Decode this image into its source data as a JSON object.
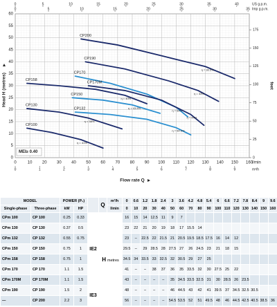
{
  "chart_data": {
    "type": "line",
    "y_label": "Head H (metres)",
    "x_label": "Flow rate Q",
    "x_unit": "l/min",
    "xlim": [
      0,
      160
    ],
    "xticks": [
      0,
      10,
      20,
      30,
      40,
      50,
      60,
      70,
      80,
      90,
      100,
      110,
      120,
      130,
      140,
      150,
      160
    ],
    "ylim": [
      0,
      60
    ],
    "yticks": [
      0,
      5,
      10,
      15,
      20,
      25,
      30,
      35,
      40,
      45,
      50,
      55,
      60
    ],
    "x2_unit": "m³/h",
    "x2lim": [
      0,
      9.6
    ],
    "x2ticks": [
      0,
      1,
      2,
      3,
      4,
      5,
      6,
      7,
      8,
      9
    ],
    "x3_unit": "US g.p.m.",
    "x3lim": [
      0,
      42.27
    ],
    "x3ticks": [
      0,
      5,
      10,
      15,
      20,
      25,
      30,
      35,
      40
    ],
    "x4_unit": "Imp g.p.m.",
    "x4lim": [
      0,
      35.2
    ],
    "x4ticks": [
      0,
      5,
      10,
      15,
      20,
      25,
      30,
      35
    ],
    "y2_unit": "feet",
    "y2lim": [
      0,
      196.85
    ],
    "y2ticks": [
      0,
      25,
      50,
      75,
      100,
      125,
      150,
      175
    ],
    "grid": true,
    "badge": "MEI≥ 0.40",
    "series": [
      {
        "name": "CP200",
        "color": "#1b2a6b",
        "x": [
          45,
          70,
          100,
          130,
          150
        ],
        "values": [
          49.5,
          47,
          42.5,
          38,
          33
        ],
        "efficiency": "η = 30.5%"
      },
      {
        "name": "CP190",
        "color": "#1b2a6b",
        "x": [
          48,
          75,
          105,
          125,
          139
        ],
        "values": [
          40,
          37,
          32,
          28,
          23.5
        ],
        "efficiency": "η = 33%"
      },
      {
        "name": "CP170",
        "color": "#2a8fd0",
        "x": [
          41,
          65,
          90,
          110,
          118
        ],
        "values": [
          34,
          31,
          26.5,
          21,
          17
        ],
        "efficiency": "η = 54%"
      },
      {
        "name": "CP170M",
        "color": "#1b2a6b",
        "x": [
          50,
          75,
          100,
          120,
          129
        ],
        "values": [
          30,
          28,
          24,
          18,
          13.5
        ],
        "efficiency": "η = 44%"
      },
      {
        "name": "CP158",
        "color": "#1b2a6b",
        "x": [
          8,
          30,
          55,
          75,
          90
        ],
        "values": [
          31,
          30,
          28.5,
          26,
          22.5
        ],
        "efficiency": "η = 40%"
      },
      {
        "name": "CP150",
        "color": "#2a8fd0",
        "x": [
          39,
          60,
          80,
          99
        ],
        "values": [
          25,
          24,
          22,
          18.5
        ],
        "efficiency": "η = 43.8%"
      },
      {
        "name": "CP132",
        "color": "#2a8fd0",
        "x": [
          41,
          65,
          90,
          110,
          120
        ],
        "values": [
          19,
          18,
          16,
          12.5,
          9.5
        ],
        "efficiency": "η = 54.5%"
      },
      {
        "name": "CP130",
        "color": "#1b2a6b",
        "x": [
          8,
          30,
          50,
          73
        ],
        "values": [
          20.5,
          19,
          16.5,
          12
        ],
        "efficiency": "η = 38%"
      },
      {
        "name": "CP100",
        "color": "#1b2a6b",
        "x": [
          8,
          25,
          45,
          60
        ],
        "values": [
          12.3,
          10.5,
          7.5,
          4
        ],
        "efficiency": "η = 41%"
      }
    ]
  },
  "table": {
    "model": "MODEL",
    "power": "POWER (P₂)",
    "columns": [
      "Single-phase",
      "Three-phase",
      "kW",
      "HP"
    ],
    "q_label": "Q",
    "q_units": [
      "m³/h",
      "l/min"
    ],
    "q_m3h": [
      0,
      0.6,
      1.2,
      1.8,
      2.4,
      3.0,
      3.6,
      4.2,
      4.8,
      5.4,
      6.0,
      6.6,
      7.2,
      7.8,
      8.4,
      9.0,
      9.6
    ],
    "q_lmin": [
      0,
      10,
      20,
      30,
      40,
      50,
      60,
      70,
      80,
      90,
      100,
      110,
      120,
      130,
      140,
      150,
      160
    ],
    "h_label": "H",
    "h_unit": "metres",
    "classes": [
      {
        "label": "IE2",
        "rows": 7
      },
      {
        "label": "IE3",
        "rows": 2
      }
    ],
    "rows": [
      {
        "single": "CPm 100",
        "three": "CP 100",
        "kw": 0.25,
        "hp": 0.33,
        "h": [
          16,
          15,
          14,
          12.5,
          11,
          9,
          7,
          null,
          null,
          null,
          null,
          null,
          null,
          null,
          null,
          null,
          null
        ]
      },
      {
        "single": "CPm 130",
        "three": "CP 130",
        "kw": 0.37,
        "hp": 0.5,
        "h": [
          23,
          22,
          21,
          20,
          19,
          18,
          17,
          15.5,
          14,
          null,
          null,
          null,
          null,
          null,
          null,
          null,
          null
        ]
      },
      {
        "single": "CPm 132",
        "three": "CP 132",
        "kw": 0.55,
        "hp": 0.75,
        "h": [
          23,
          "–",
          22.5,
          22,
          21.5,
          21,
          20.5,
          19.5,
          18.5,
          17.5,
          16,
          14,
          12,
          null,
          null,
          null,
          null
        ]
      },
      {
        "single": "CPm 150",
        "three": "CP 150",
        "kw": 0.75,
        "hp": 1,
        "h": [
          29.5,
          "–",
          29,
          28.5,
          28,
          27.5,
          27,
          26,
          24.5,
          23,
          21,
          18,
          15,
          null,
          null,
          null,
          null
        ]
      },
      {
        "single": "CPm 158",
        "three": "CP 158",
        "kw": 0.75,
        "hp": 1,
        "h": [
          34.5,
          34,
          33.5,
          33,
          32.5,
          32,
          30.5,
          29,
          27,
          25,
          null,
          null,
          null,
          null,
          null,
          null,
          null
        ]
      },
      {
        "single": "CPm 170",
        "three": "CP 170",
        "kw": 1.1,
        "hp": 1.5,
        "h": [
          41,
          "–",
          "–",
          38,
          37,
          36,
          35,
          33.5,
          32,
          30,
          27.5,
          25,
          22,
          null,
          null,
          null,
          null
        ]
      },
      {
        "single": "CPm 170M",
        "three": "CP 170M",
        "kw": 1.1,
        "hp": 1.5,
        "h": [
          43,
          "–",
          "–",
          "–",
          "–",
          35,
          34.5,
          33.5,
          32.5,
          31,
          30,
          28.5,
          26,
          23.5,
          null,
          null,
          null
        ]
      },
      {
        "single": "CPm 190",
        "three": "CP 190",
        "kw": 1.5,
        "hp": 2,
        "h": [
          48,
          "–",
          "–",
          "–",
          "–",
          46,
          44.5,
          43,
          42,
          41,
          39.5,
          37,
          34.5,
          32.5,
          30.5,
          null,
          null
        ]
      },
      {
        "single": "—",
        "three": "CP 200",
        "kw": 2.2,
        "hp": 3,
        "h": [
          56,
          "–",
          "–",
          "–",
          "–",
          54.5,
          53.5,
          52,
          51,
          49.5,
          48,
          46,
          44.5,
          42.5,
          40.5,
          38.5,
          36
        ]
      }
    ]
  }
}
